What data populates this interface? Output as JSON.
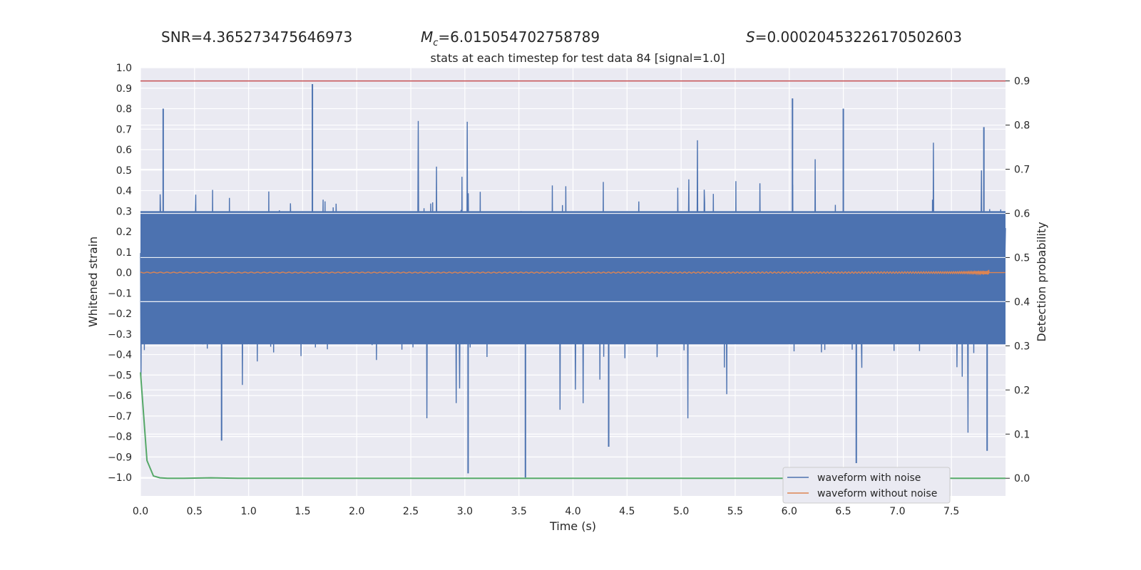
{
  "header": {
    "snr": "SNR=4.365273475646973",
    "mc_prefix": "M",
    "mc_sub": "c",
    "mc_value": "=6.015054702758789",
    "s_prefix": "S",
    "s_value": "=0.00020453226170502603"
  },
  "chart_data": {
    "type": "line",
    "title": "stats at each timestep for test data 84 [signal=1.0]",
    "xlabel": "Time (s)",
    "ylabel": "Whitened strain",
    "y2label": "Detection probability",
    "xlim": [
      0.0,
      8.0
    ],
    "ylim": [
      -1.09,
      1.0
    ],
    "y2lim": [
      -0.04,
      0.93
    ],
    "xticks": [
      "0.0",
      "0.5",
      "1.0",
      "1.5",
      "2.0",
      "2.5",
      "3.0",
      "3.5",
      "4.0",
      "4.5",
      "5.0",
      "5.5",
      "6.0",
      "6.5",
      "7.0",
      "7.5"
    ],
    "yticks": [
      "1.0",
      "0.9",
      "0.8",
      "0.7",
      "0.6",
      "0.5",
      "0.4",
      "0.3",
      "0.2",
      "0.1",
      "0.0",
      "−0.1",
      "−0.2",
      "−0.3",
      "−0.4",
      "−0.5",
      "−0.6",
      "−0.7",
      "−0.8",
      "−0.9",
      "−1.0"
    ],
    "y2ticks": [
      "0.9",
      "0.8",
      "0.7",
      "0.6",
      "0.5",
      "0.4",
      "0.3",
      "0.2",
      "0.1",
      "0.0"
    ],
    "threshold": {
      "value": 0.9,
      "color": "#c44e52"
    },
    "series": [
      {
        "name": "waveform with noise",
        "color": "#4c72b0",
        "axis": "left",
        "description": "dense noisy strain, approx. range -1.0 to 0.92",
        "notable_peaks": [
          {
            "t": 1.59,
            "v": 0.92
          },
          {
            "t": 0.21,
            "v": 0.8
          },
          {
            "t": 6.03,
            "v": 0.85
          },
          {
            "t": 6.5,
            "v": 0.8
          },
          {
            "t": 7.8,
            "v": 0.71
          },
          {
            "t": 3.56,
            "v": -1.0
          },
          {
            "t": 3.03,
            "v": -0.98
          },
          {
            "t": 6.62,
            "v": -0.93
          },
          {
            "t": 7.83,
            "v": -0.87
          },
          {
            "t": 4.33,
            "v": -0.85
          },
          {
            "t": 0.75,
            "v": -0.82
          }
        ]
      },
      {
        "name": "waveform without noise",
        "color": "#dd8452",
        "axis": "left",
        "description": "chirp signal, amplitude growing to ~0.11 near merger at t=7.85 s, then zero",
        "merger_time": 7.85,
        "peak_amplitude": 0.11
      },
      {
        "name": "detection probability",
        "color": "#55a868",
        "axis": "right",
        "x": [
          0.0,
          0.06,
          0.12,
          0.18,
          0.25,
          0.4,
          0.65,
          0.9,
          2.0,
          4.0,
          6.0,
          8.0
        ],
        "values": [
          0.24,
          0.04,
          0.005,
          0.001,
          0.0,
          0.0,
          0.001,
          0.0,
          0.0,
          0.0,
          0.0,
          0.0
        ]
      }
    ],
    "legend": {
      "position": "lower-right",
      "entries": [
        "waveform with noise",
        "waveform without noise"
      ]
    }
  }
}
